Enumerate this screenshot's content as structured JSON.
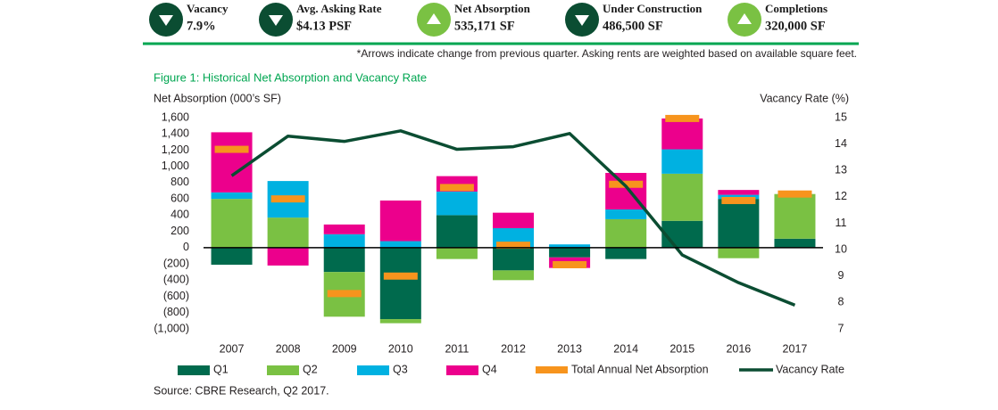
{
  "header": {
    "kpis": [
      {
        "label": "Vacancy",
        "value": "7.9%",
        "direction": "down"
      },
      {
        "label": "Avg. Asking Rate",
        "value": "$4.13 PSF",
        "direction": "down"
      },
      {
        "label": "Net Absorption",
        "value": "535,171  SF",
        "direction": "up"
      },
      {
        "label": "Under Construction",
        "value": "486,500 SF",
        "direction": "down"
      },
      {
        "label": "Completions",
        "value": "320,000 SF",
        "direction": "up"
      }
    ],
    "footnote": "*Arrows indicate change from previous quarter. Asking rents are weighted based on available square feet."
  },
  "chart_data": {
    "type": "bar",
    "stacked": true,
    "title": "Figure 1: Historical Net Absorption and Vacancy Rate",
    "y_label": "Net Absorption (000’s SF)",
    "y2_label": "Vacancy Rate (%)",
    "categories": [
      "2007",
      "2008",
      "2009",
      "2010",
      "2011",
      "2012",
      "2013",
      "2014",
      "2015",
      "2016",
      "2017"
    ],
    "ylim": [
      -1000,
      1600
    ],
    "yticks": [
      {
        "value": 1600,
        "label": "1,600"
      },
      {
        "value": 1400,
        "label": "1,400"
      },
      {
        "value": 1200,
        "label": "1,200"
      },
      {
        "value": 1000,
        "label": "1,000"
      },
      800,
      600,
      400,
      200,
      0,
      {
        "value": -200,
        "label": "(200)"
      },
      {
        "value": -400,
        "label": "(400)"
      },
      {
        "value": -600,
        "label": "(600)"
      },
      {
        "value": -800,
        "label": "(800)"
      },
      {
        "value": -1000,
        "label": "(1,000)"
      }
    ],
    "y2lim": [
      7,
      15
    ],
    "y2ticks": [
      7,
      8,
      9,
      10,
      11,
      12,
      13,
      14,
      15
    ],
    "series": [
      {
        "name": "Q1",
        "type": "bar",
        "color": "#006a4d",
        "values": [
          -210,
          0,
          -300,
          -880,
          400,
          -280,
          -120,
          -140,
          330,
          600,
          110
        ]
      },
      {
        "name": "Q2",
        "type": "bar",
        "color": "#7ac143",
        "values": [
          600,
          370,
          -550,
          -50,
          -140,
          -120,
          0,
          350,
          580,
          -130,
          550
        ]
      },
      {
        "name": "Q3",
        "type": "bar",
        "color": "#00b1e1",
        "values": [
          80,
          450,
          165,
          80,
          290,
          240,
          40,
          120,
          300,
          50,
          null
        ]
      },
      {
        "name": "Q4",
        "type": "bar",
        "color": "#ec008c",
        "values": [
          740,
          -220,
          120,
          500,
          190,
          190,
          -130,
          450,
          380,
          60,
          null
        ]
      },
      {
        "name": "Total Annual Net Absorption",
        "type": "marker",
        "color": "#f7941d",
        "values": [
          1210,
          600,
          -565,
          -350,
          740,
          30,
          -210,
          780,
          1590,
          580,
          660
        ]
      },
      {
        "name": "Vacancy Rate",
        "type": "line",
        "axis": "y2",
        "color": "#0b4d32",
        "values": [
          12.8,
          14.3,
          14.1,
          14.5,
          13.8,
          13.9,
          14.4,
          12.4,
          9.8,
          8.75,
          7.9
        ]
      }
    ]
  },
  "source": "Source: CBRE Research, Q2 2017."
}
